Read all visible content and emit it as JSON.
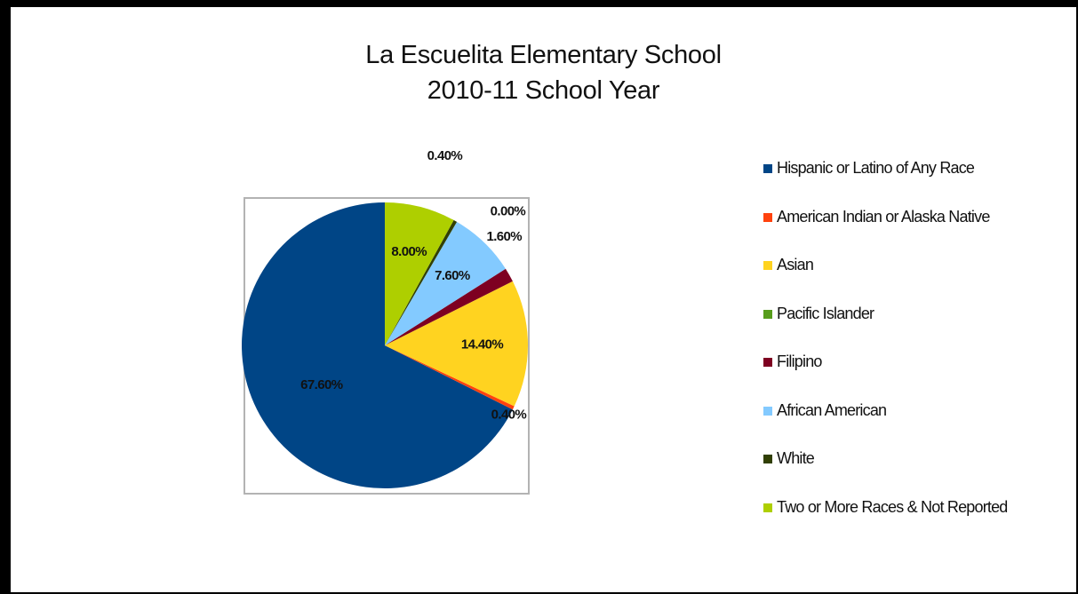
{
  "chart_data": {
    "type": "pie",
    "title": [
      "La Escuelita Elementary School",
      "2010-11 School Year"
    ],
    "series": [
      {
        "name": "Hispanic or Latino of Any Race",
        "value": 67.6,
        "label": "67.60%",
        "color": "#004586"
      },
      {
        "name": "American Indian or Alaska Native",
        "value": 0.4,
        "label": "0.40%",
        "color": "#ff420e"
      },
      {
        "name": "Asian",
        "value": 14.4,
        "label": "14.40%",
        "color": "#ffd320"
      },
      {
        "name": "Pacific Islander",
        "value": 0.0,
        "label": "0.00%",
        "color": "#579d1c"
      },
      {
        "name": "Filipino",
        "value": 1.6,
        "label": "1.60%",
        "color": "#7e0021"
      },
      {
        "name": "African American",
        "value": 7.6,
        "label": "7.60%",
        "color": "#83caff"
      },
      {
        "name": "White",
        "value": 0.4,
        "label": "0.40%",
        "color": "#314004"
      },
      {
        "name": "Two or More Races & Not Reported",
        "value": 8.0,
        "label": "8.00%",
        "color": "#aecf00"
      }
    ],
    "legend_position": "right"
  }
}
